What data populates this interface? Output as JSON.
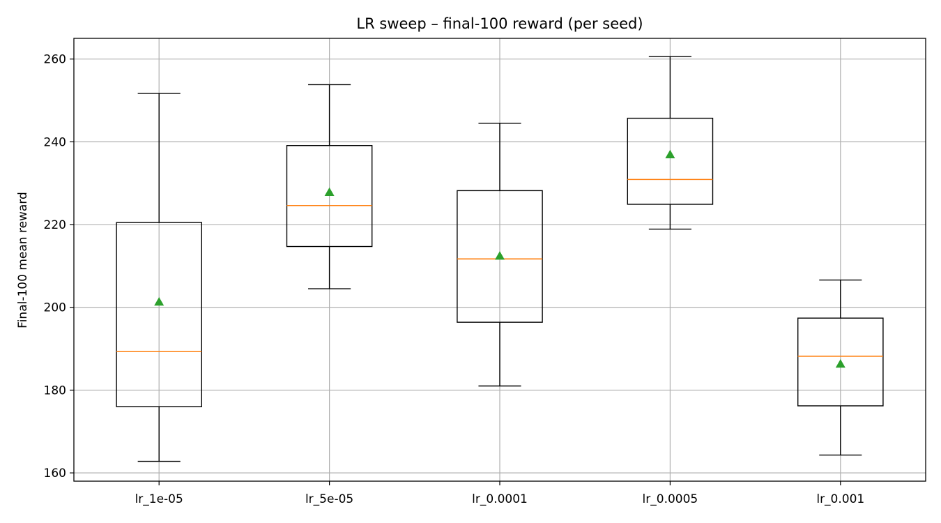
{
  "chart_data": {
    "type": "box",
    "title": "LR sweep – final-100 reward (per seed)",
    "xlabel": "",
    "ylabel": "Final-100 mean reward",
    "ylim": [
      158,
      265
    ],
    "yticks": [
      160,
      180,
      200,
      220,
      240,
      260
    ],
    "grid": true,
    "categories": [
      "lr_1e-05",
      "lr_5e-05",
      "lr_0.0001",
      "lr_0.0005",
      "lr_0.001"
    ],
    "boxes": [
      {
        "whisker_low": 162.8,
        "q1": 176.0,
        "median": 189.3,
        "q3": 220.5,
        "whisker_high": 251.7,
        "mean": 201.3
      },
      {
        "whisker_low": 204.5,
        "q1": 214.7,
        "median": 224.6,
        "q3": 239.1,
        "whisker_high": 253.8,
        "mean": 227.8
      },
      {
        "whisker_low": 181.0,
        "q1": 196.4,
        "median": 211.7,
        "q3": 228.2,
        "whisker_high": 244.5,
        "mean": 212.4
      },
      {
        "whisker_low": 218.9,
        "q1": 224.9,
        "median": 230.9,
        "q3": 245.7,
        "whisker_high": 260.6,
        "mean": 236.9
      },
      {
        "whisker_low": 164.3,
        "q1": 176.2,
        "median": 188.2,
        "q3": 197.4,
        "whisker_high": 206.6,
        "mean": 186.3
      }
    ],
    "colors": {
      "box": "#000000",
      "median": "#ff7f0e",
      "mean": "#2ca02c",
      "grid": "#b0b0b0"
    }
  }
}
